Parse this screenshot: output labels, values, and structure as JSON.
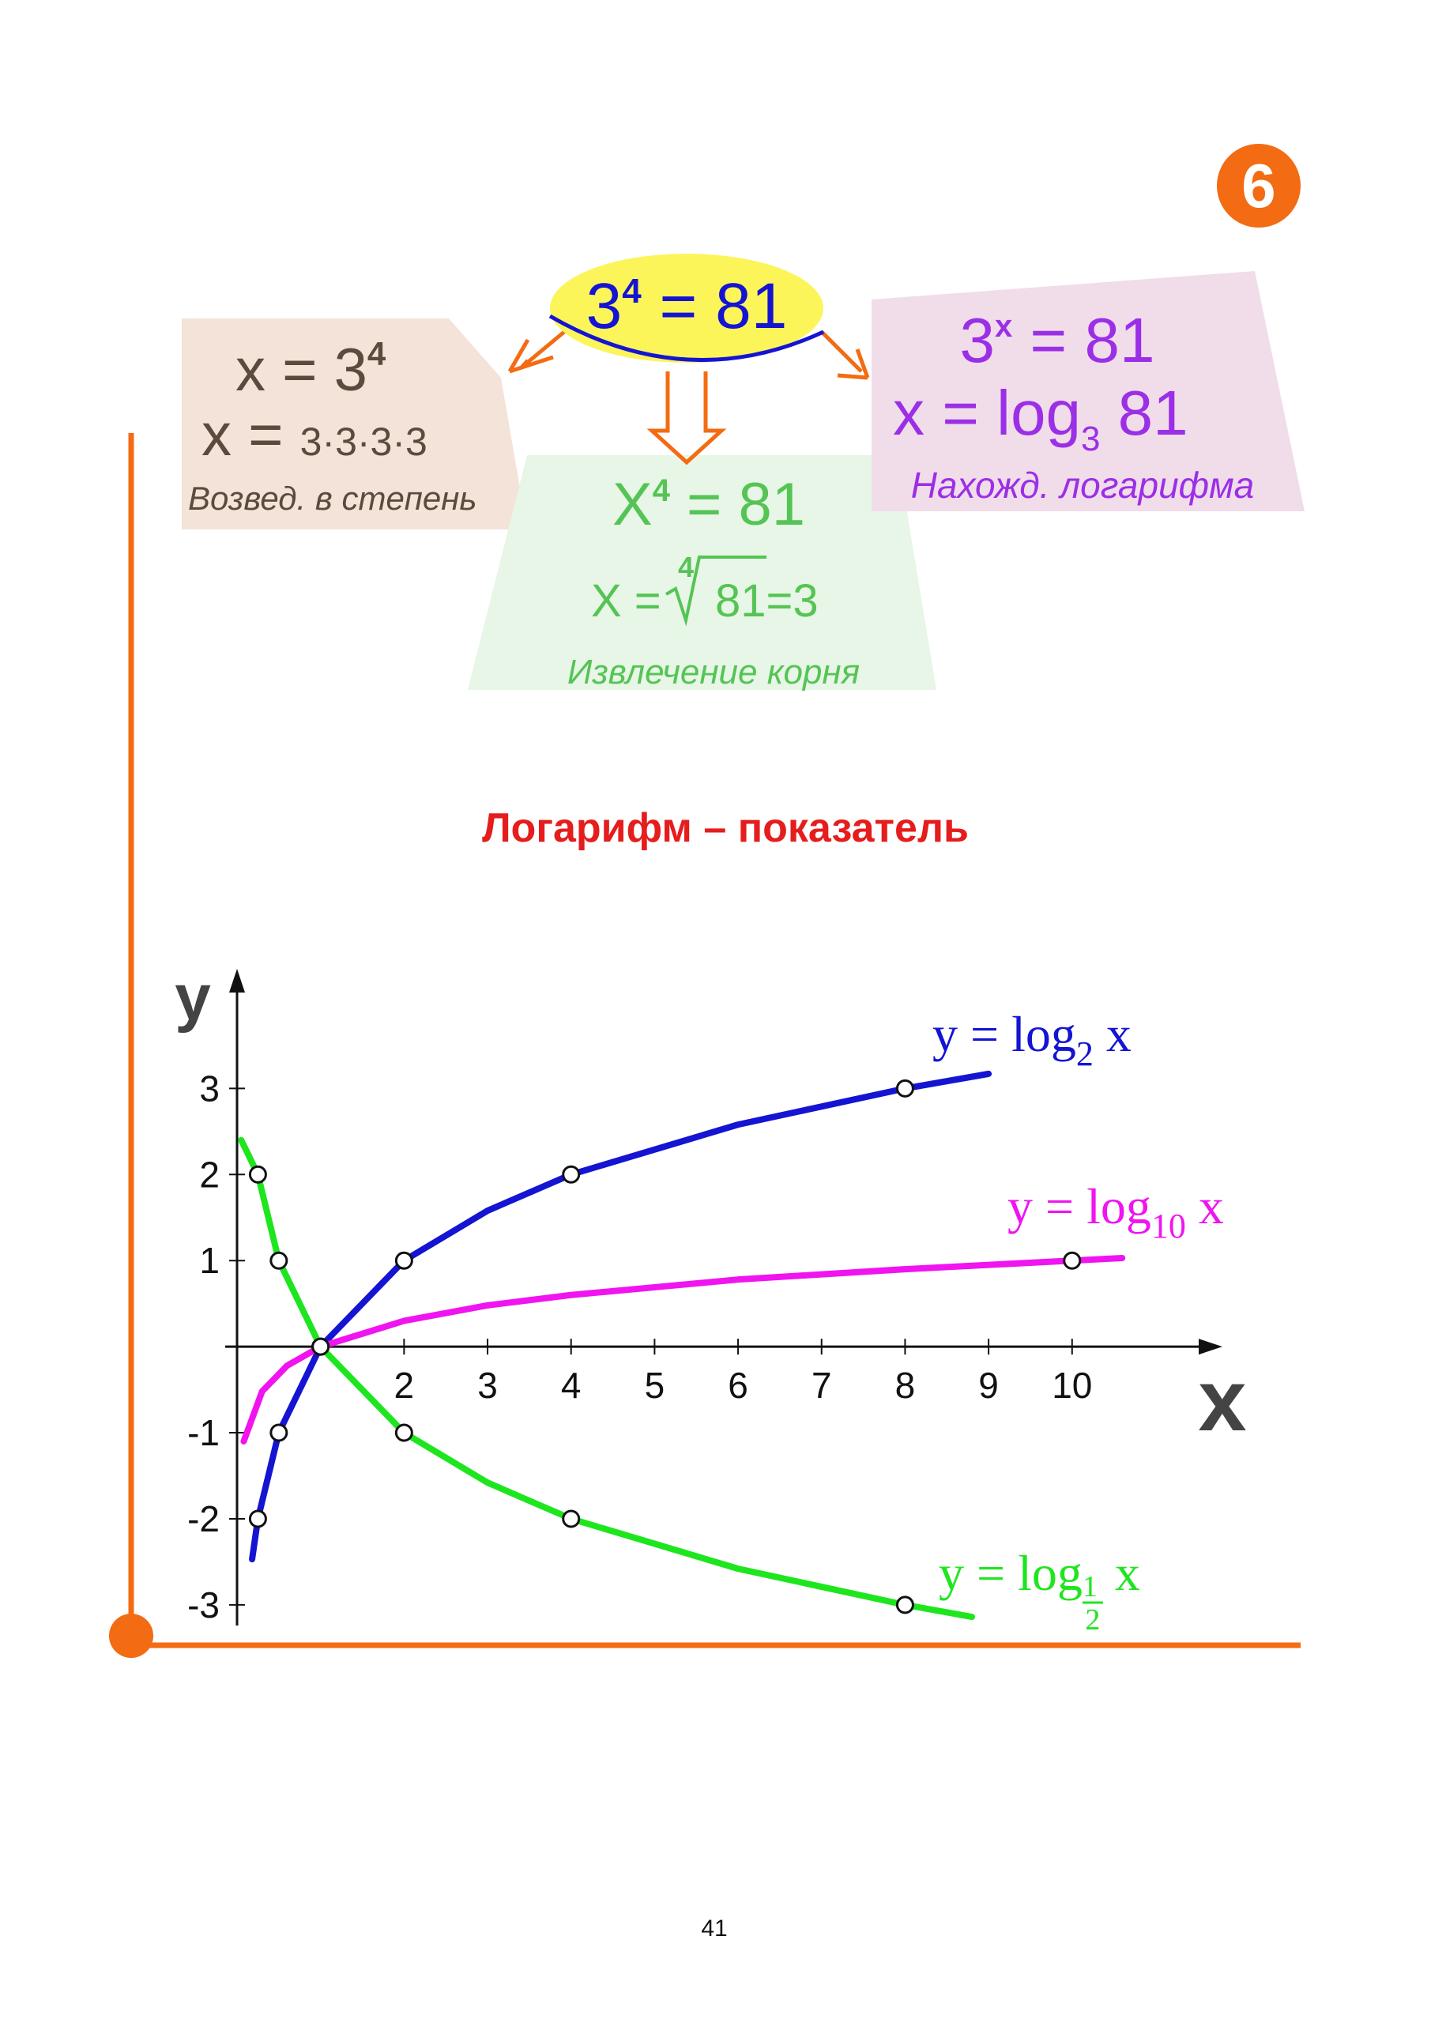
{
  "badge": "6",
  "diagram": {
    "center": {
      "base": "3",
      "exp": "4",
      "rest": " = 81"
    },
    "left": {
      "line1": {
        "base": "x = 3",
        "exp": "4"
      },
      "line2": {
        "lead": "x = ",
        "rest": "3·3·3·3"
      },
      "caption": "Возвед. в степень"
    },
    "middle": {
      "line1": {
        "base": "X",
        "exp": "4",
        "rest": " = 81"
      },
      "line2": {
        "lead": "X =",
        "index": "4",
        "radicand": "81=3"
      },
      "caption": "Извлечение корня"
    },
    "right": {
      "line1": {
        "base": "3",
        "exp": "x",
        "rest": " = 81"
      },
      "line2": {
        "lead": "x = log",
        "sub": "3",
        "rest": " 81"
      },
      "caption": "Нахожд. логарифма"
    }
  },
  "heading": "Логарифм – показатель",
  "chart_data": {
    "type": "line",
    "x_label": "x",
    "y_label": "y",
    "xlim": [
      0,
      11.8
    ],
    "ylim": [
      -3.24,
      4.39
    ],
    "xticks": [
      2,
      3,
      4,
      5,
      6,
      7,
      8,
      9,
      10
    ],
    "yticks": [
      -3,
      -2,
      -1,
      1,
      2,
      3
    ],
    "series": [
      {
        "color": "#1414d2",
        "label": {
          "lead": "y = log",
          "sub": "2",
          "tail": " x"
        },
        "x": [
          0.18,
          0.25,
          0.5,
          1,
          2,
          3,
          4,
          6,
          8,
          9
        ],
        "values": [
          -2.47,
          -2,
          -1,
          0,
          1,
          1.58,
          2,
          2.58,
          3,
          3.17
        ],
        "marked_x": [
          0.25,
          0.5,
          1,
          2,
          4,
          8
        ],
        "marked_values": [
          -2,
          -1,
          0,
          1,
          2,
          3
        ]
      },
      {
        "color": "#f014f0",
        "label": {
          "lead": "y = log",
          "sub": "10",
          "tail": " x"
        },
        "x": [
          0.08,
          0.3,
          0.6,
          1,
          2,
          3,
          4,
          6,
          8,
          10,
          10.6
        ],
        "values": [
          -1.1,
          -0.52,
          -0.22,
          0,
          0.3,
          0.48,
          0.6,
          0.78,
          0.9,
          1,
          1.03
        ],
        "marked_x": [
          1,
          10
        ],
        "marked_values": [
          0,
          1
        ]
      },
      {
        "color": "#1ee61e",
        "label": {
          "lead": "y = log",
          "sub_num": "1",
          "sub_den": "2",
          "tail": " x"
        },
        "x": [
          0.05,
          0.25,
          0.5,
          1,
          2,
          3,
          4,
          6,
          8,
          8.8
        ],
        "values": [
          2.4,
          2,
          1,
          0,
          -1,
          -1.58,
          -2,
          -2.58,
          -3,
          -3.14
        ],
        "marked_x": [
          0.25,
          0.5,
          1,
          2,
          4,
          8
        ],
        "marked_values": [
          2,
          1,
          0,
          -1,
          -2,
          -3
        ]
      }
    ]
  },
  "page_number": "41"
}
